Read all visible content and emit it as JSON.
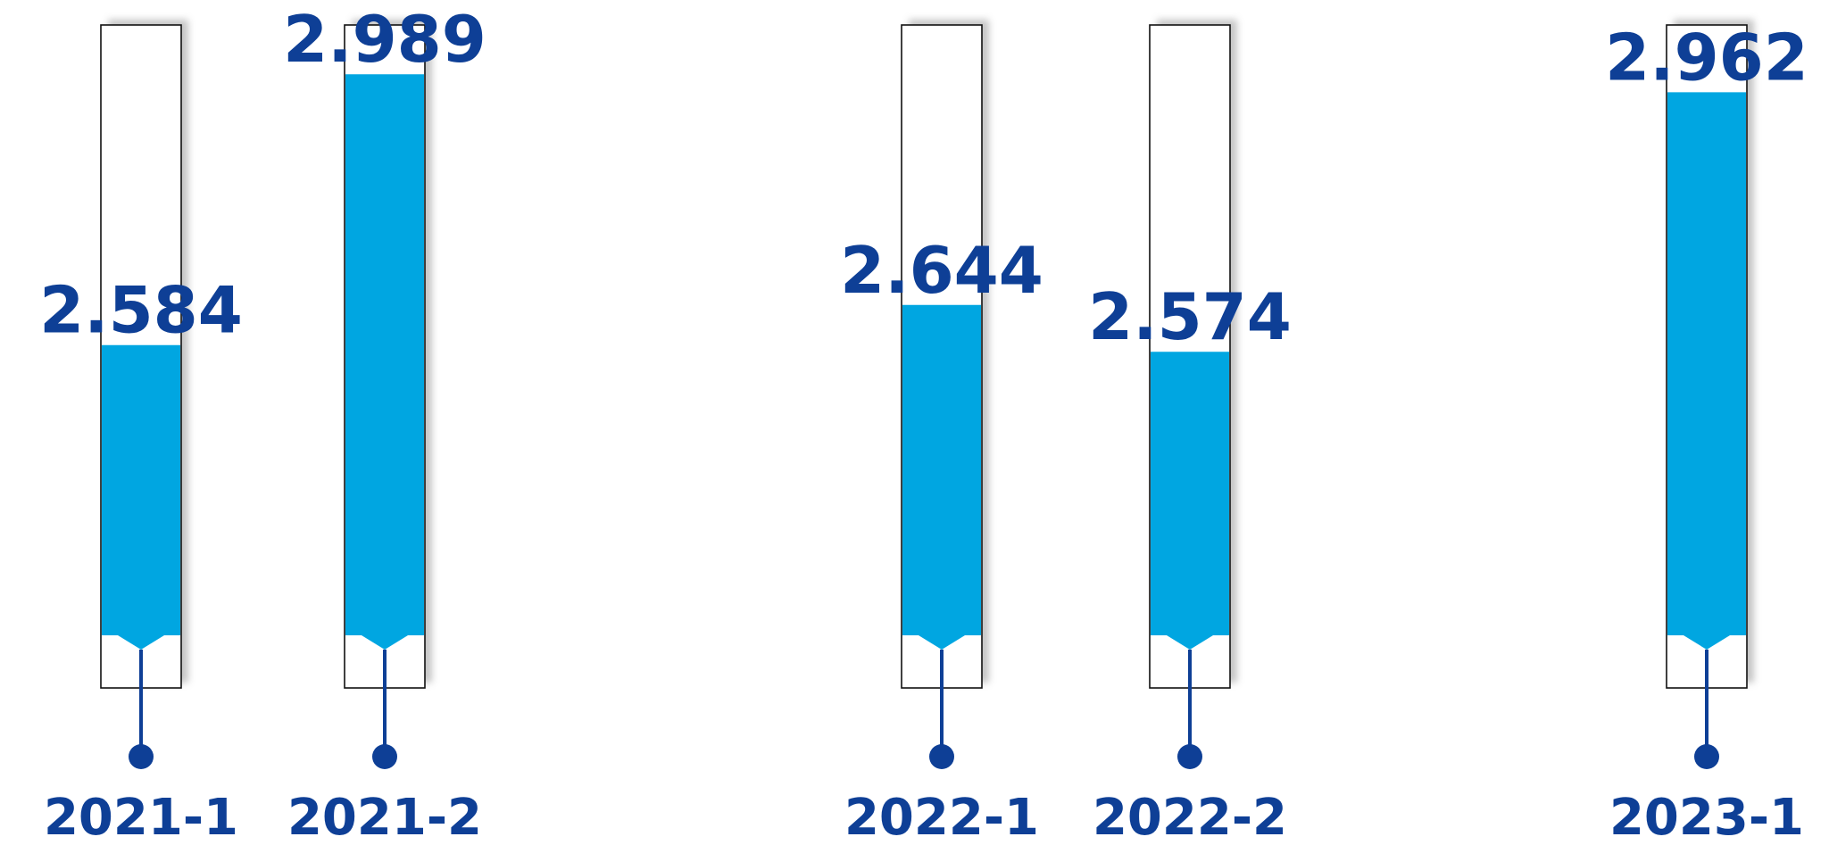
{
  "chart_data": {
    "type": "bar",
    "title": "",
    "xlabel": "",
    "ylabel": "",
    "categories": [
      "2021-1",
      "2021-2",
      "2022-1",
      "2022-2",
      "2023-1"
    ],
    "values": [
      2.584,
      2.989,
      2.644,
      2.574,
      2.962
    ],
    "value_labels": [
      "2.584",
      "2.989",
      "2.644",
      "2.574",
      "2.962"
    ],
    "ylim": [
      2.15,
      3.1
    ],
    "grid": false,
    "legend": "none",
    "colors": {
      "fill": "#00A6E1",
      "text": "#0E3F96",
      "tube_border": "#111111",
      "tube_shadow": "#BFBFBF",
      "background": "#FFFFFF"
    }
  }
}
